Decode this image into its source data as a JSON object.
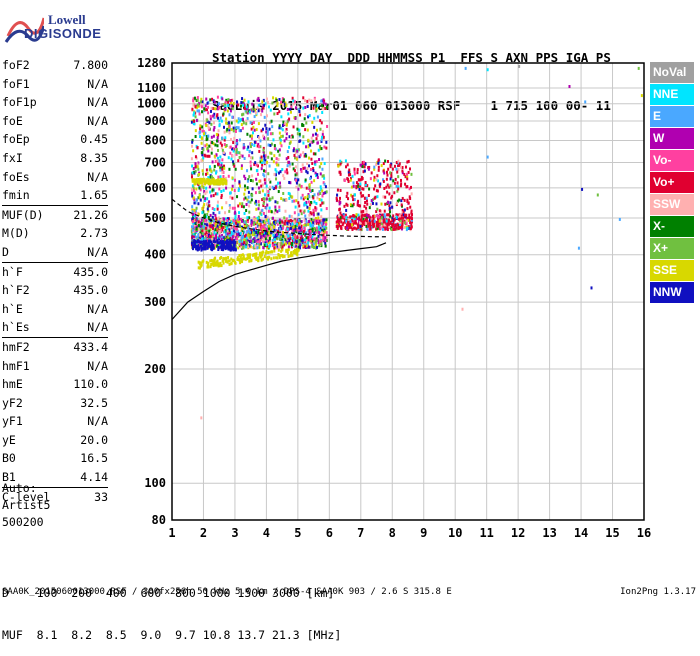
{
  "logo": {
    "line1": "Lowell",
    "line2": "DIGISONDE"
  },
  "header": {
    "line1": "Station YYYY DAY  DDD HHMMSS P1  FFS S AXN PPS IGA PS",
    "line2": "SaoLuis 2015 Mar01 060 013000 RSF    1 715 100 00- 11"
  },
  "params": [
    {
      "k": "foF2",
      "v": "7.800"
    },
    {
      "k": "foF1",
      "v": "N/A"
    },
    {
      "k": "foF1p",
      "v": "N/A"
    },
    {
      "k": "foE",
      "v": "N/A"
    },
    {
      "k": "foEp",
      "v": "0.45"
    },
    {
      "k": "fxI",
      "v": "8.35"
    },
    {
      "k": "foEs",
      "v": "N/A"
    },
    {
      "k": "fmin",
      "v": "1.65"
    },
    {
      "k": "MUF(D)",
      "v": "21.26",
      "sep": true
    },
    {
      "k": "M(D)",
      "v": "2.73"
    },
    {
      "k": "D",
      "v": "N/A"
    },
    {
      "k": "h`F",
      "v": "435.0",
      "sep": true
    },
    {
      "k": "h`F2",
      "v": "435.0"
    },
    {
      "k": "h`E",
      "v": "N/A"
    },
    {
      "k": "h`Es",
      "v": "N/A"
    },
    {
      "k": "hmF2",
      "v": "433.4",
      "sep": true
    },
    {
      "k": "hmF1",
      "v": "N/A"
    },
    {
      "k": "hmE",
      "v": "110.0"
    },
    {
      "k": "yF2",
      "v": "32.5"
    },
    {
      "k": "yF1",
      "v": "N/A"
    },
    {
      "k": "yE",
      "v": "20.0"
    },
    {
      "k": "B0",
      "v": "16.5"
    },
    {
      "k": "B1",
      "v": "4.14"
    },
    {
      "k": "C-level",
      "v": "33",
      "sep": true
    }
  ],
  "auto": {
    "line1": "Auto:",
    "line2": "Artist5",
    "line3": "500200"
  },
  "legend": [
    {
      "label": "NoVal",
      "color": "#a0a0a0"
    },
    {
      "label": "NNE",
      "color": "#00e5ff"
    },
    {
      "label": "E",
      "color": "#4aa8ff"
    },
    {
      "label": "W",
      "color": "#b000b0"
    },
    {
      "label": "Vo-",
      "color": "#ff40a0"
    },
    {
      "label": "Vo+",
      "color": "#e00030"
    },
    {
      "label": "SSW",
      "color": "#ffb0b0"
    },
    {
      "label": "X-",
      "color": "#008000"
    },
    {
      "label": "X+",
      "color": "#70c040"
    },
    {
      "label": "SSE",
      "color": "#d8d800"
    },
    {
      "label": "NNW",
      "color": "#1010c0"
    }
  ],
  "bottom": {
    "line1": "D    100  200  400  600  800 1000 1500 3000 [km]",
    "line2": "MUF  8.1  8.2  8.5  9.0  9.7 10.8 13.7 21.3 [MHz]"
  },
  "footer": {
    "left": "SAA0K_2015060013000.RSF / 300fx256h 50 kHz 5.0 km / DPS-4 SAA0K 903 / 2.6 S 315.8 E",
    "right": "Ion2Png 1.3.17"
  },
  "chart_data": {
    "type": "scatter",
    "title": "",
    "xlabel": "",
    "ylabel": "",
    "xlim": [
      1,
      16
    ],
    "ylim": [
      80,
      1280
    ],
    "yscale": "log",
    "x_ticks": [
      1,
      2,
      3,
      4,
      5,
      6,
      7,
      8,
      9,
      10,
      11,
      12,
      13,
      14,
      15,
      16
    ],
    "y_ticks": [
      80,
      100,
      200,
      300,
      400,
      500,
      600,
      700,
      800,
      900,
      1000,
      1100,
      1280
    ],
    "grid": true,
    "legend_position": "right",
    "clusters": [
      {
        "name": "Vo+",
        "x": [
          1.6,
          8.3
        ],
        "y": [
          430,
          500
        ]
      },
      {
        "name": "SSE",
        "x": [
          1.6,
          8.8
        ],
        "y": [
          380,
          700
        ]
      },
      {
        "name": "W",
        "x": [
          1.7,
          5.8
        ],
        "y": [
          420,
          1000
        ]
      },
      {
        "name": "NNW",
        "x": [
          1.6,
          3.0
        ],
        "y": [
          410,
          440
        ]
      }
    ],
    "curves": [
      {
        "name": "profile-low",
        "x": [
          1.0,
          1.5,
          2.0,
          2.5,
          3.0,
          3.5,
          4.0,
          4.5,
          5.0,
          5.5,
          6.0,
          6.5,
          7.0,
          7.5,
          7.8
        ],
        "y": [
          270,
          300,
          320,
          340,
          355,
          365,
          375,
          385,
          392,
          398,
          405,
          410,
          415,
          420,
          430
        ]
      },
      {
        "name": "profile-high",
        "x": [
          1.0,
          1.5,
          2.0,
          2.5,
          3.0,
          3.5,
          4.0,
          4.5,
          5.0,
          5.5,
          6.0,
          6.5,
          7.0,
          7.5,
          7.8
        ],
        "y": [
          560,
          520,
          500,
          485,
          475,
          468,
          462,
          458,
          455,
          452,
          450,
          448,
          447,
          446,
          446
        ]
      }
    ]
  }
}
